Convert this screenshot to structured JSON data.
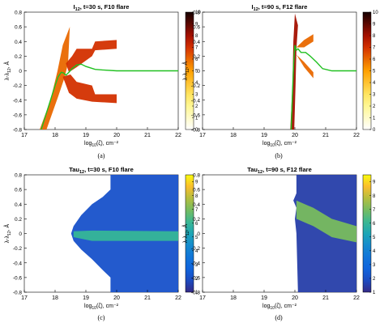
{
  "panels": [
    {
      "id": "a",
      "caption": "(a)",
      "title_main": "I",
      "title_sub": "12",
      "title_rest": ", t=30 s, F10 flare",
      "xlabel_main": "log",
      "xlabel_sub": "10",
      "xlabel_rest": "(ζ), cm⁻²",
      "ylabel_main": "λ-λ",
      "ylabel_sub": "12",
      "ylabel_rest": ", Å",
      "colormap": "hot",
      "colorbar_ticks": [
        "0",
        "1",
        "2",
        "3",
        "4",
        "5",
        "6",
        "7",
        "8",
        "9",
        "10"
      ]
    },
    {
      "id": "b",
      "caption": "(b)",
      "title_main": "I",
      "title_sub": "12",
      "title_rest": ", t=90 s, F12 flare",
      "xlabel_main": "log",
      "xlabel_sub": "10",
      "xlabel_rest": "(ζ), cm⁻²",
      "ylabel_main": "λ-λ",
      "ylabel_sub": "12",
      "ylabel_rest": ", Å",
      "colormap": "hot",
      "colorbar_ticks": [
        "0",
        "1",
        "2",
        "3",
        "4",
        "5",
        "6",
        "7",
        "8",
        "9",
        "10"
      ]
    },
    {
      "id": "c",
      "caption": "(c)",
      "title_main": "Tau",
      "title_sub": "12",
      "title_rest": ", t=30 s, F10 flare",
      "xlabel_main": "log",
      "xlabel_sub": "10",
      "xlabel_rest": "(ζ), cm⁻²",
      "ylabel_main": "λ-λ",
      "ylabel_sub": "12",
      "ylabel_rest": ", Å",
      "colormap": "parula",
      "colorbar_ticks": [
        "1",
        "2",
        "3",
        "4",
        "5",
        "6",
        "7",
        "8",
        "9"
      ]
    },
    {
      "id": "d",
      "caption": "(d)",
      "title_main": "Tau",
      "title_sub": "12",
      "title_rest": ", t=90 s, F12 flare",
      "xlabel_main": "log",
      "xlabel_sub": "10",
      "xlabel_rest": "(ζ), cm⁻²",
      "ylabel_main": "λ-λ",
      "ylabel_sub": "12",
      "ylabel_rest": ", Å",
      "colormap": "parula",
      "colorbar_ticks": [
        "1",
        "2",
        "3",
        "4",
        "5",
        "6",
        "7",
        "8",
        "9"
      ]
    }
  ],
  "chart_data": [
    {
      "panel": "a",
      "type": "heatmap",
      "title": "I12, t=30 s, F10 flare",
      "xlabel": "log10(ζ), cm⁻²",
      "ylabel": "λ-λ12, Å",
      "xlim": [
        17,
        22
      ],
      "ylim": [
        -0.8,
        0.8
      ],
      "xticks": [
        17,
        18,
        19,
        20,
        21,
        22
      ],
      "yticks": [
        -0.8,
        -0.6,
        -0.4,
        -0.2,
        0,
        0.2,
        0.4,
        0.6,
        0.8
      ],
      "colorbar": {
        "min": 0,
        "max": 10,
        "colormap": "hot"
      },
      "regions": [
        {
          "name": "rising wedge",
          "points": [
            [
              17.5,
              -0.8
            ],
            [
              17.85,
              -0.4
            ],
            [
              18.08,
              0.0
            ],
            [
              18.25,
              0.35
            ],
            [
              18.48,
              0.6
            ],
            [
              18.42,
              0.1
            ],
            [
              18.3,
              -0.1
            ],
            [
              18.1,
              -0.35
            ],
            [
              17.72,
              -0.8
            ]
          ],
          "intensity": 6
        },
        {
          "name": "upper wing",
          "points": [
            [
              18.35,
              0.1
            ],
            [
              18.55,
              0.2
            ],
            [
              18.7,
              0.3
            ],
            [
              19.2,
              0.3
            ],
            [
              19.3,
              0.4
            ],
            [
              20.0,
              0.42
            ],
            [
              20.0,
              0.3
            ],
            [
              19.3,
              0.28
            ],
            [
              19.2,
              0.2
            ],
            [
              18.7,
              0.05
            ],
            [
              18.45,
              -0.02
            ]
          ],
          "intensity": 7
        },
        {
          "name": "lower wing",
          "points": [
            [
              18.25,
              -0.08
            ],
            [
              18.5,
              -0.05
            ],
            [
              18.7,
              -0.15
            ],
            [
              19.2,
              -0.2
            ],
            [
              19.3,
              -0.32
            ],
            [
              20.0,
              -0.32
            ],
            [
              20.0,
              -0.44
            ],
            [
              19.2,
              -0.42
            ],
            [
              18.7,
              -0.38
            ],
            [
              18.45,
              -0.3
            ]
          ],
          "intensity": 7
        }
      ],
      "line": {
        "color": "#20c020",
        "x": [
          17.55,
          17.7,
          17.85,
          18.0,
          18.1,
          18.2,
          18.28,
          18.35,
          18.45,
          18.55,
          18.7,
          18.85,
          19.0,
          19.3,
          19.6,
          20.0,
          22.0
        ],
        "y": [
          -0.8,
          -0.6,
          -0.4,
          -0.2,
          -0.08,
          -0.02,
          -0.03,
          -0.06,
          -0.02,
          0.03,
          0.08,
          0.09,
          0.06,
          0.02,
          0.01,
          0.0,
          0.0
        ]
      }
    },
    {
      "panel": "b",
      "type": "heatmap",
      "title": "I12, t=90 s, F12 flare",
      "xlabel": "log10(ζ), cm⁻²",
      "ylabel": "λ-λ12, Å",
      "xlim": [
        17,
        22
      ],
      "ylim": [
        -0.8,
        0.8
      ],
      "xticks": [
        17,
        18,
        19,
        20,
        21,
        22
      ],
      "yticks": [
        -0.8,
        -0.6,
        -0.4,
        -0.2,
        0,
        0.2,
        0.4,
        0.6,
        0.8
      ],
      "colorbar": {
        "min": 0,
        "max": 10,
        "colormap": "hot"
      },
      "regions": [
        {
          "name": "vertical band",
          "points": [
            [
              19.85,
              -0.8
            ],
            [
              19.92,
              -0.2
            ],
            [
              19.95,
              0.4
            ],
            [
              20.0,
              0.78
            ],
            [
              20.1,
              0.62
            ],
            [
              20.05,
              0.3
            ],
            [
              20.02,
              -0.2
            ],
            [
              19.98,
              -0.8
            ]
          ],
          "intensity": 8
        },
        {
          "name": "upper wing",
          "points": [
            [
              20.05,
              0.32
            ],
            [
              20.3,
              0.42
            ],
            [
              20.6,
              0.5
            ],
            [
              20.6,
              0.4
            ],
            [
              20.3,
              0.32
            ]
          ],
          "intensity": 6
        },
        {
          "name": "lower wing",
          "points": [
            [
              20.05,
              0.22
            ],
            [
              20.3,
              0.12
            ],
            [
              20.6,
              -0.02
            ],
            [
              20.6,
              -0.1
            ],
            [
              20.3,
              0.05
            ]
          ],
          "intensity": 6
        }
      ],
      "line": {
        "color": "#20c020",
        "x": [
          19.88,
          19.92,
          19.96,
          20.0,
          20.05,
          20.1,
          20.2,
          20.35,
          20.5,
          20.7,
          20.9,
          21.2,
          22.0
        ],
        "y": [
          -0.8,
          -0.3,
          0.1,
          0.35,
          0.28,
          0.3,
          0.25,
          0.25,
          0.2,
          0.12,
          0.03,
          0.0,
          0.0
        ]
      }
    },
    {
      "panel": "c",
      "type": "heatmap",
      "title": "Tau12, t=30 s, F10 flare",
      "xlabel": "log10(ζ), cm⁻²",
      "ylabel": "λ-λ12, Å",
      "xlim": [
        17,
        22
      ],
      "ylim": [
        -0.8,
        0.8
      ],
      "xticks": [
        17,
        18,
        19,
        20,
        21,
        22
      ],
      "yticks": [
        -0.8,
        -0.6,
        -0.4,
        -0.2,
        0,
        0.2,
        0.4,
        0.6,
        0.8
      ],
      "colorbar": {
        "min": 1,
        "max": 9.5,
        "colormap": "parula"
      },
      "regions": [
        {
          "name": "domain",
          "points": [
            [
              19.8,
              0.8
            ],
            [
              19.8,
              0.6
            ],
            [
              19.55,
              0.5
            ],
            [
              19.2,
              0.4
            ],
            [
              18.85,
              0.25
            ],
            [
              18.6,
              0.1
            ],
            [
              18.52,
              0.0
            ],
            [
              18.6,
              -0.1
            ],
            [
              18.85,
              -0.22
            ],
            [
              19.2,
              -0.35
            ],
            [
              19.55,
              -0.5
            ],
            [
              19.8,
              -0.6
            ],
            [
              19.8,
              -0.8
            ],
            [
              22.0,
              -0.8
            ],
            [
              22.0,
              0.8
            ]
          ],
          "intensity": 2
        },
        {
          "name": "core band",
          "points": [
            [
              18.6,
              0.03
            ],
            [
              19.2,
              0.04
            ],
            [
              22.0,
              0.03
            ],
            [
              22.0,
              -0.1
            ],
            [
              19.2,
              -0.1
            ],
            [
              18.6,
              -0.05
            ]
          ],
          "intensity": 6
        }
      ]
    },
    {
      "panel": "d",
      "type": "heatmap",
      "title": "Tau12, t=90 s, F12 flare",
      "xlabel": "log10(ζ), cm⁻²",
      "ylabel": "λ-λ12, Å",
      "xlim": [
        17,
        22
      ],
      "ylim": [
        -0.8,
        0.8
      ],
      "xticks": [
        17,
        18,
        19,
        20,
        21,
        22
      ],
      "yticks": [
        -0.8,
        -0.6,
        -0.4,
        -0.2,
        0,
        0.2,
        0.4,
        0.6,
        0.8
      ],
      "colorbar": {
        "min": 1,
        "max": 9.5,
        "colormap": "parula"
      },
      "regions": [
        {
          "name": "domain",
          "points": [
            [
              20.05,
              0.8
            ],
            [
              20.05,
              0.55
            ],
            [
              19.95,
              0.45
            ],
            [
              20.05,
              0.35
            ],
            [
              20.0,
              0.2
            ],
            [
              20.05,
              0.0
            ],
            [
              20.1,
              -0.8
            ],
            [
              22.0,
              -0.8
            ],
            [
              22.0,
              0.8
            ]
          ],
          "intensity": 1.5
        },
        {
          "name": "bright wedge",
          "points": [
            [
              20.05,
              0.45
            ],
            [
              20.6,
              0.35
            ],
            [
              21.2,
              0.2
            ],
            [
              22.0,
              0.1
            ],
            [
              22.0,
              -0.12
            ],
            [
              21.2,
              -0.05
            ],
            [
              20.6,
              0.1
            ],
            [
              20.05,
              0.2
            ]
          ],
          "intensity": 7
        }
      ]
    }
  ]
}
